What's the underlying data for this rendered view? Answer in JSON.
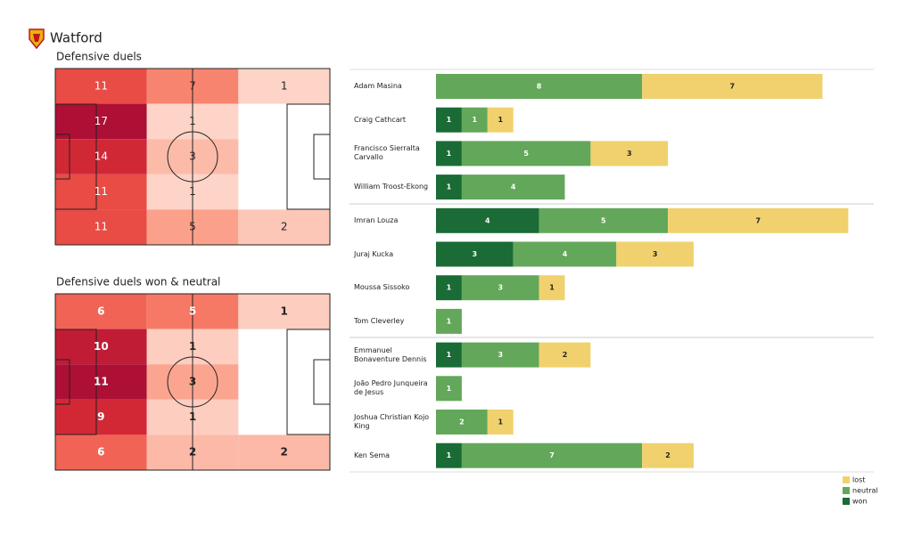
{
  "title": "Watford",
  "chart_data": [
    {
      "type": "heatmap",
      "title": "Defensive duels",
      "values": [
        [
          11,
          7,
          1
        ],
        [
          17,
          1,
          null
        ],
        [
          14,
          3,
          null
        ],
        [
          11,
          1,
          null
        ],
        [
          11,
          5,
          2
        ]
      ]
    },
    {
      "type": "heatmap",
      "title": "Defensive duels won & neutral",
      "values": [
        [
          6,
          5,
          1
        ],
        [
          10,
          1,
          null
        ],
        [
          11,
          3,
          null
        ],
        [
          9,
          1,
          null
        ],
        [
          6,
          2,
          2
        ]
      ]
    },
    {
      "type": "bar",
      "orientation": "horizontal",
      "stacked": true,
      "legend": "lower right",
      "categories": [
        "Adam Masina",
        "Craig Cathcart",
        "Francisco Sierralta Carvallo",
        "William Troost-Ekong",
        "Imran Louza",
        "Juraj Kucka",
        "Moussa Sissoko",
        "Tom Cleverley",
        "Emmanuel Bonaventure Dennis",
        "João Pedro Junqueira de Jesus",
        "Joshua Christian Kojo King",
        "Ken Sema"
      ],
      "series": [
        {
          "name": "won",
          "color": "#1a6b36",
          "values": [
            null,
            1,
            1,
            1,
            4,
            3,
            1,
            null,
            1,
            null,
            null,
            1
          ]
        },
        {
          "name": "neutral",
          "color": "#63a75a",
          "values": [
            8,
            1,
            5,
            4,
            5,
            4,
            3,
            1,
            3,
            1,
            2,
            7
          ]
        },
        {
          "name": "lost",
          "color": "#f0d16d",
          "values": [
            7,
            1,
            3,
            null,
            7,
            3,
            1,
            null,
            2,
            null,
            1,
            2
          ]
        }
      ]
    }
  ]
}
